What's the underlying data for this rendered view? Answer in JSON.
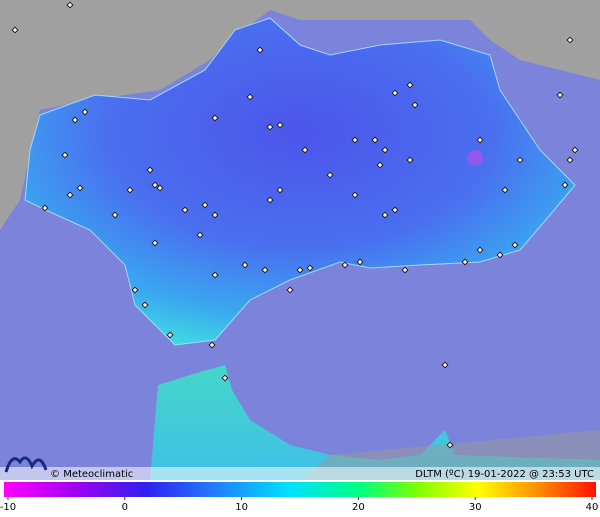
{
  "brand": "Meteoclimatic",
  "caption": "DLTM (ºC) 19-01-2022 @ 23:53 UTC",
  "color_scale": {
    "range": [
      -10,
      40
    ],
    "ticks": [
      -10,
      0,
      10,
      20,
      30,
      40
    ]
  }
}
